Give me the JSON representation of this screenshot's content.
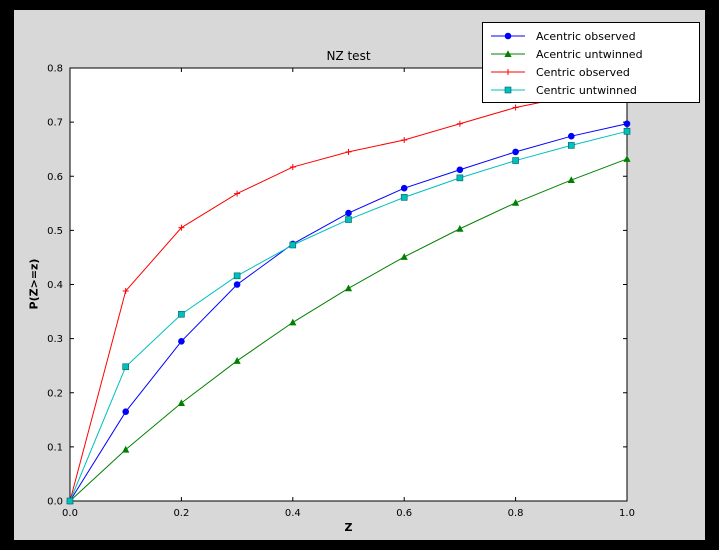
{
  "window": {
    "background": "#000000",
    "figure_background": "#d8d8d8",
    "plot_background": "#ffffff",
    "axis_color": "#000000"
  },
  "chart_data": {
    "type": "line",
    "title": "NZ test",
    "xlabel": "Z",
    "ylabel": "P(Z>=z)",
    "xlim": [
      0.0,
      1.0
    ],
    "ylim": [
      0.0,
      0.8
    ],
    "xticks": [
      0.0,
      0.2,
      0.4,
      0.6,
      0.8,
      1.0
    ],
    "yticks": [
      0.0,
      0.1,
      0.2,
      0.3,
      0.4,
      0.5,
      0.6,
      0.7,
      0.8
    ],
    "grid": false,
    "legend_position": "upper right",
    "x": [
      0.0,
      0.1,
      0.2,
      0.3,
      0.4,
      0.5,
      0.6,
      0.7,
      0.8,
      0.9,
      1.0
    ],
    "series": [
      {
        "name": "Acentric observed",
        "color": "#0000ff",
        "marker": "circle",
        "values": [
          0.0,
          0.165,
          0.295,
          0.4,
          0.475,
          0.532,
          0.578,
          0.612,
          0.645,
          0.674,
          0.697
        ]
      },
      {
        "name": "Acentric untwinned",
        "color": "#008000",
        "marker": "triangle",
        "values": [
          0.0,
          0.095,
          0.181,
          0.259,
          0.33,
          0.393,
          0.451,
          0.503,
          0.551,
          0.593,
          0.632
        ]
      },
      {
        "name": "Centric observed",
        "color": "#ff0000",
        "marker": "plus",
        "values": [
          0.0,
          0.388,
          0.505,
          0.568,
          0.617,
          0.645,
          0.667,
          0.697,
          0.727,
          0.748,
          0.757
        ]
      },
      {
        "name": "Centric untwinned",
        "color": "#00bfbf",
        "marker": "square",
        "values": [
          0.0,
          0.248,
          0.345,
          0.416,
          0.473,
          0.52,
          0.561,
          0.597,
          0.629,
          0.657,
          0.683
        ]
      }
    ]
  }
}
